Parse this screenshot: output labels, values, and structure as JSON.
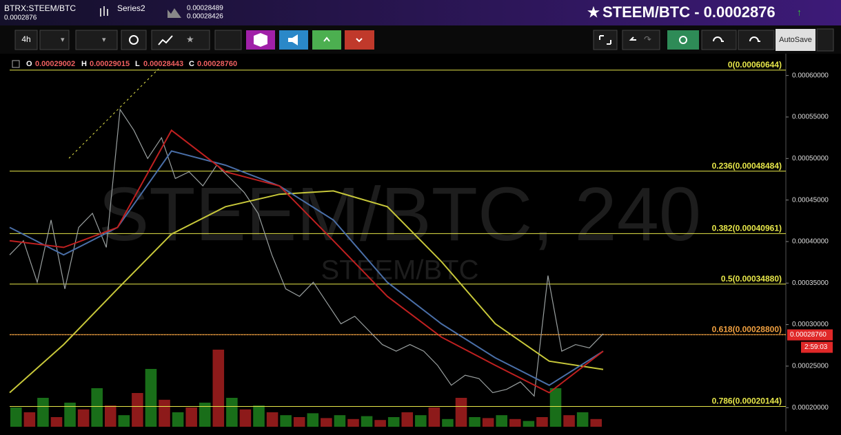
{
  "header": {
    "symbol": "BTRX:STEEM/BTC",
    "symbol_price": "0.0002876",
    "series": "Series2",
    "series_high": "0.00028489",
    "series_low": "0.00028426",
    "title": "STEEM/BTC - 0.0002876"
  },
  "toolbar": {
    "interval": "4h",
    "autosave": "AutoSave"
  },
  "ohlc": {
    "o_label": "O",
    "o": "0.00029002",
    "h_label": "H",
    "h": "0.00029015",
    "l_label": "L",
    "l": "0.00028443",
    "c_label": "C",
    "c": "0.00028760"
  },
  "chart_data": {
    "type": "line",
    "watermark": "STEEM/BTC, 240",
    "watermark_sub": "STEEM/BTC",
    "ylim": [
      0.000177,
      0.000608
    ],
    "yticks": [
      {
        "value": 0.0002,
        "label": "0.00020000"
      },
      {
        "value": 0.00025,
        "label": "0.00025000"
      },
      {
        "value": 0.0003,
        "label": "0.00030000"
      },
      {
        "value": 0.00035,
        "label": "0.00035000"
      },
      {
        "value": 0.0004,
        "label": "0.00040000"
      },
      {
        "value": 0.00045,
        "label": "0.00045000"
      },
      {
        "value": 0.0005,
        "label": "0.00050000"
      },
      {
        "value": 0.00055,
        "label": "0.00055000"
      },
      {
        "value": 0.0006,
        "label": "0.00060000"
      }
    ],
    "series": [
      {
        "color": "#9aa0a0",
        "values": [
          0.000384,
          0.000401,
          0.000351,
          0.000426,
          0.000343,
          0.000417,
          0.000434,
          0.000393,
          0.000559,
          0.000534,
          0.0005,
          0.000525,
          0.000476,
          0.000484,
          0.000467,
          0.000492,
          0.000476,
          0.000459,
          0.000434,
          0.000384,
          0.000343,
          0.000334,
          0.000351,
          0.000326,
          0.000301,
          0.00031,
          0.000293,
          0.000276,
          0.000268,
          0.000276,
          0.000268,
          0.000251,
          0.000227,
          0.000239,
          0.000235,
          0.000218,
          0.000222,
          0.000231,
          0.000214,
          0.000359,
          0.000268,
          0.000276,
          0.000272,
          0.000289
        ]
      },
      {
        "color": "#c8c83a",
        "values": [
          0.000218,
          0.000276,
          0.000343,
          0.000409,
          0.000442,
          0.000457,
          0.000461,
          0.000442,
          0.000376,
          0.000301,
          0.000256,
          0.000246
        ]
      },
      {
        "color": "#4a6fa8",
        "values": [
          0.000417,
          0.000384,
          0.000417,
          0.000509,
          0.000492,
          0.000467,
          0.000426,
          0.000351,
          0.000301,
          0.00026,
          0.000227,
          0.000268
        ]
      },
      {
        "color": "#c02020",
        "values": [
          0.000401,
          0.000393,
          0.000417,
          0.000534,
          0.000484,
          0.000467,
          0.000401,
          0.000334,
          0.000285,
          0.000251,
          0.000218,
          0.000268
        ]
      }
    ],
    "fib_levels": [
      {
        "value": 0.00060644,
        "label": "0(0.00060644)",
        "color": "#e8e84a"
      },
      {
        "value": 0.00048484,
        "label": "0.236(0.00048484)",
        "color": "#e8e84a"
      },
      {
        "value": 0.00040961,
        "label": "0.382(0.00040961)",
        "color": "#e8e84a"
      },
      {
        "value": 0.0003488,
        "label": "0.5(0.00034880)",
        "color": "#e8e84a"
      },
      {
        "value": 0.000288,
        "label": "0.618(0.00028800)",
        "color": "#f0a040"
      },
      {
        "value": 0.00020144,
        "label": "0.786(0.00020144)",
        "color": "#e8e84a"
      }
    ],
    "last_price": {
      "value": 0.0002876,
      "label": "0.00028760"
    },
    "countdown": "2:59:03",
    "volume": {
      "ylim": [
        0,
        100
      ],
      "colors": [
        "#1f8a1f",
        "#b02020"
      ],
      "values": [
        20,
        15,
        30,
        10,
        25,
        18,
        40,
        22,
        12,
        35,
        60,
        28,
        15,
        20,
        25,
        80,
        30,
        18,
        22,
        15,
        12,
        10,
        14,
        9,
        12,
        8,
        11,
        7,
        10,
        15,
        12,
        20,
        8,
        30,
        10,
        9,
        12,
        8,
        6,
        10,
        40,
        12,
        15,
        8
      ]
    }
  }
}
